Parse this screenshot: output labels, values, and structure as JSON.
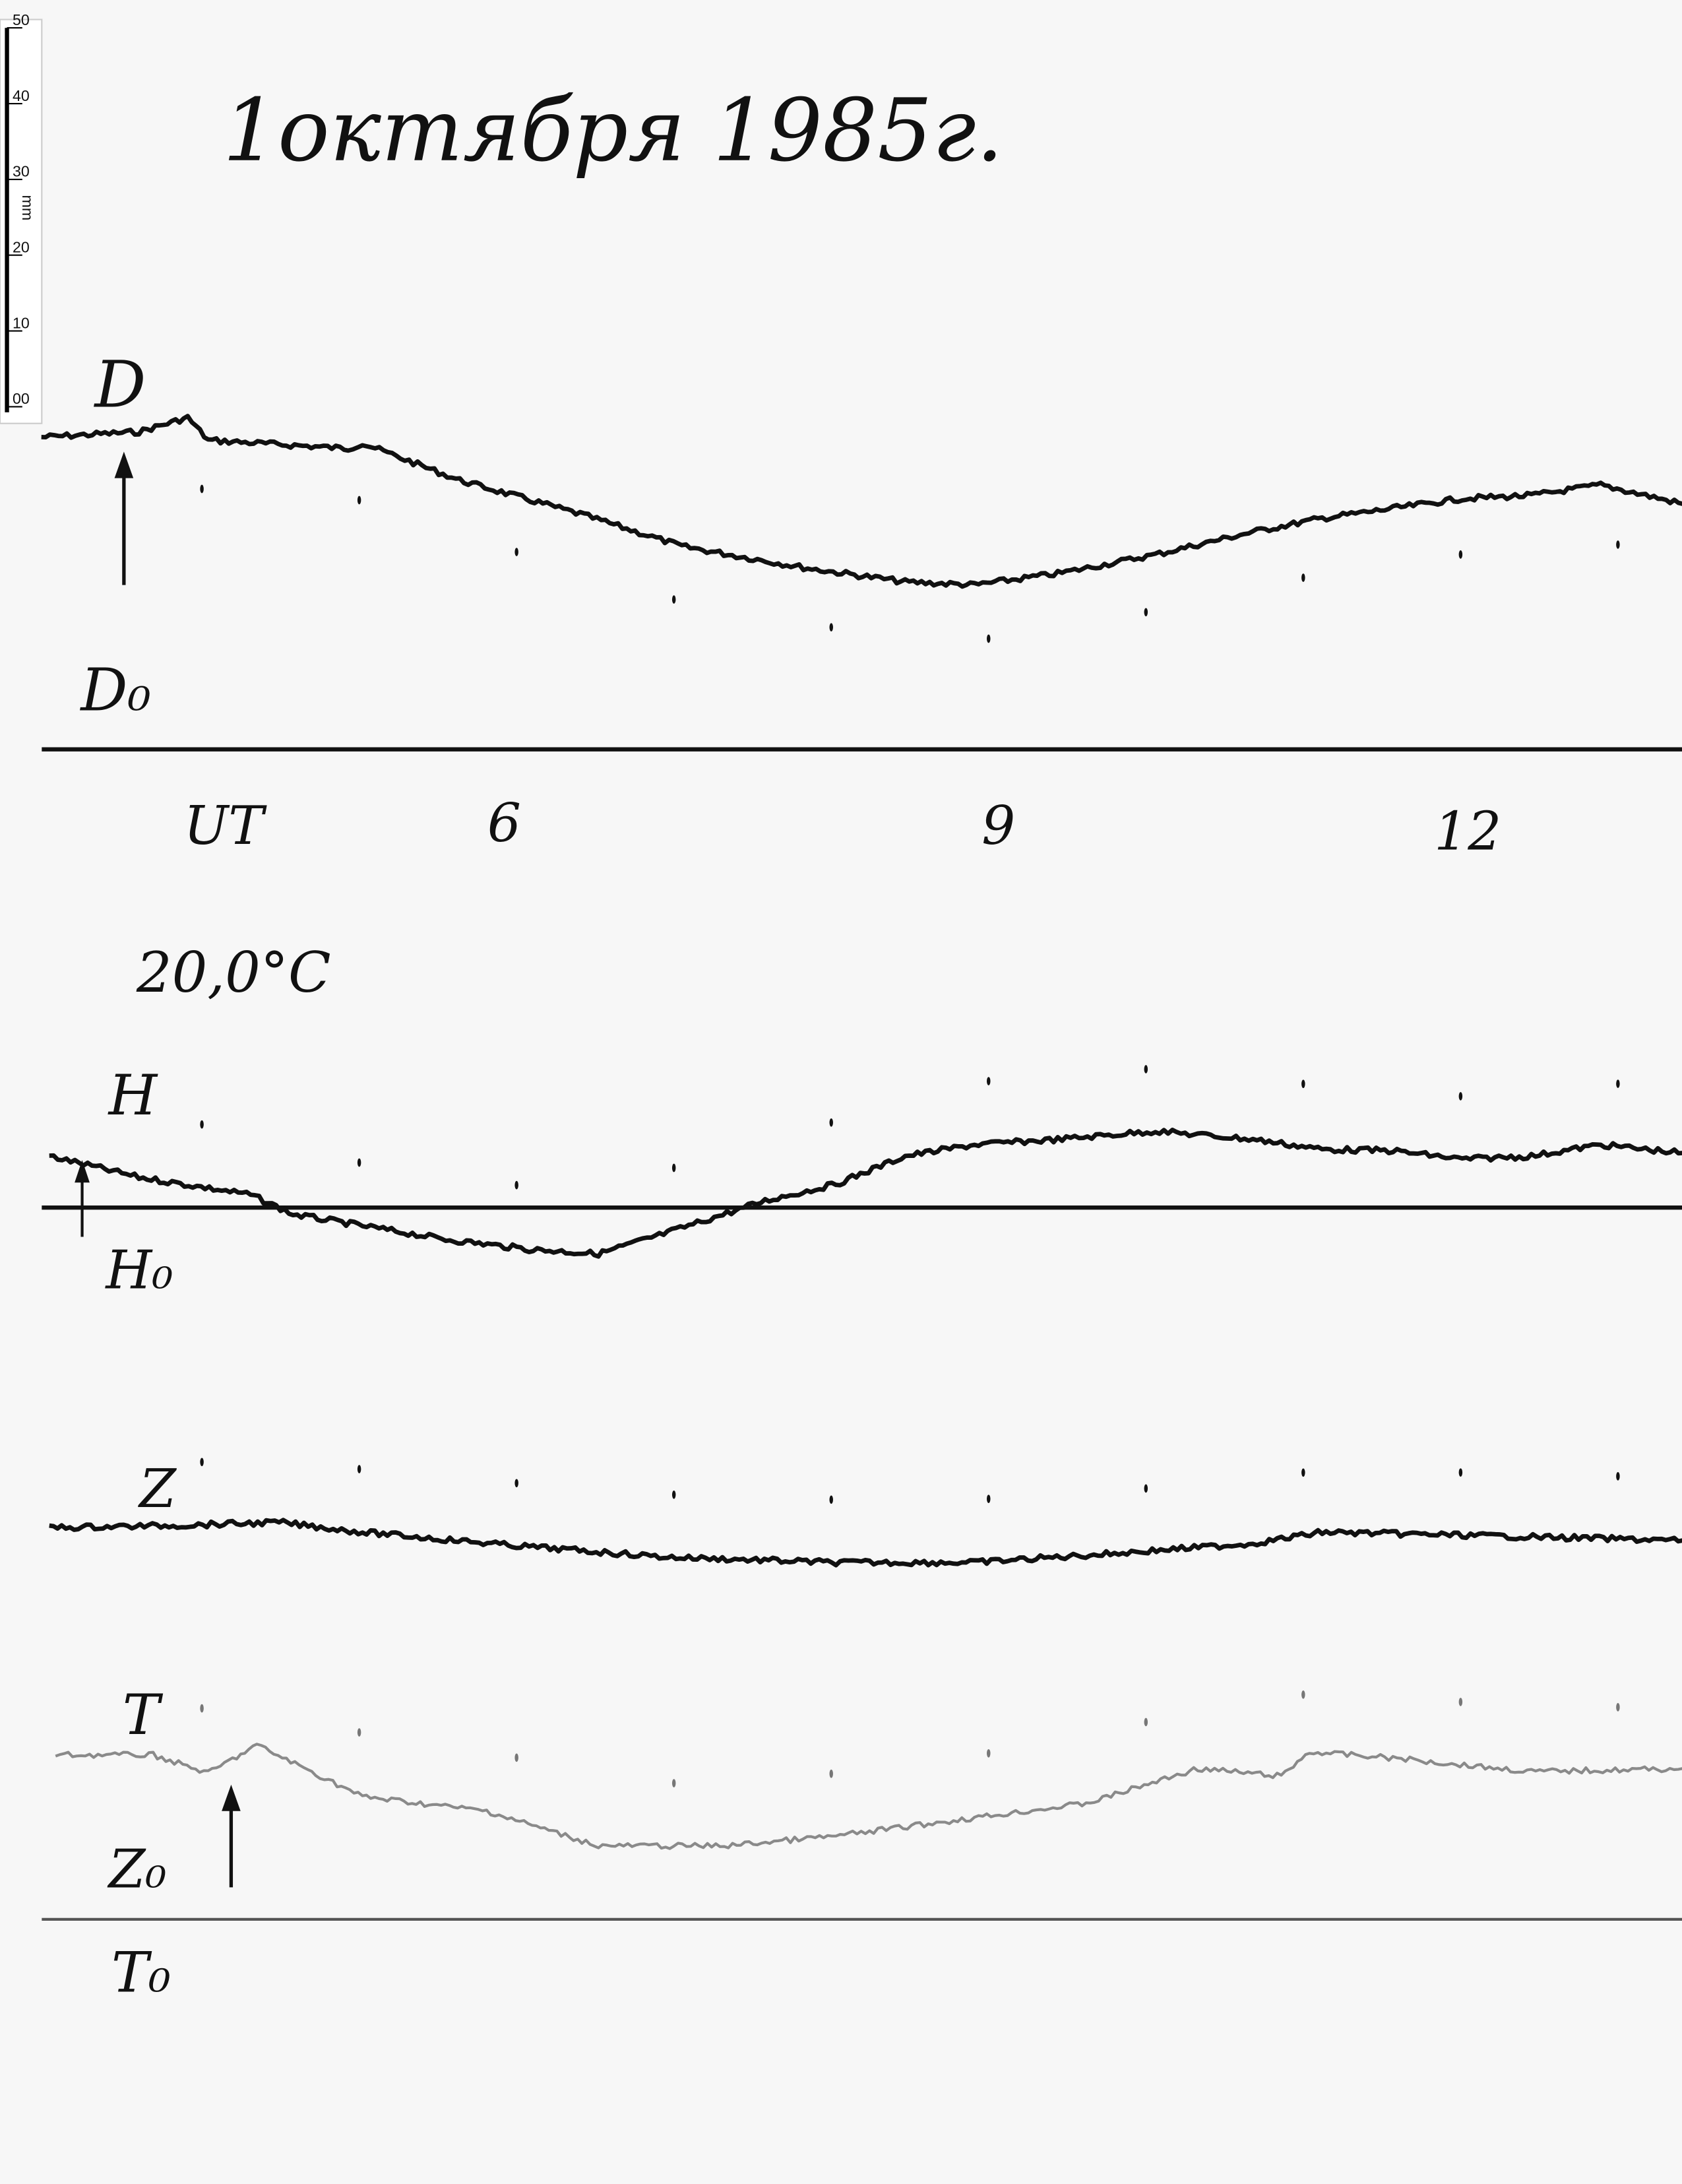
{
  "title": "1октября 1985г.",
  "scale_bar": {
    "unit": "mm",
    "ticks": [
      "00",
      "10",
      "20",
      "30",
      "40",
      "50"
    ]
  },
  "labels": {
    "D": "D",
    "D0": "D₀",
    "UT": "UT",
    "h6": "6",
    "h9": "9",
    "h12": "12",
    "temperature": "20,0°C",
    "H": "H",
    "H0": "H₀",
    "Z": "Z",
    "T": "T",
    "Z0": "Z₀",
    "T0": "T₀"
  },
  "colors": {
    "paper": "#f7f7f7",
    "trace": "#111111",
    "T_trace": "#8a8a8a",
    "baseline": "#111111"
  },
  "chart_data": {
    "type": "line",
    "title": "1октября 1985г.",
    "xlabel": "UT",
    "x_tick_labels": [
      "6",
      "9",
      "12"
    ],
    "x_ticks": [
      6,
      9,
      12
    ],
    "xlim": [
      2.95,
      13.45
    ],
    "y_unit": "mm",
    "hour_marks": [
      4,
      5,
      6,
      7,
      8,
      9,
      10,
      11,
      12,
      13
    ],
    "series": [
      {
        "name": "D",
        "baseline": "D₀",
        "x": [
          2.98,
          3.6,
          3.91,
          4.04,
          4.93,
          5.02,
          5.64,
          6.43,
          7.05,
          7.85,
          8.47,
          8.91,
          9.44,
          10.06,
          10.68,
          11.12,
          11.57,
          12.01,
          12.45,
          12.89,
          13.41
        ],
        "y": [
          41.2,
          41.9,
          43.8,
          40.8,
          39.7,
          40.4,
          35.5,
          30.9,
          26.8,
          23.9,
          22.1,
          21.7,
          23.2,
          25.7,
          28.7,
          30.5,
          31.8,
          33.1,
          33.5,
          34.9,
          32.4
        ]
      },
      {
        "name": "H",
        "baseline": "H₀",
        "x": [
          3.03,
          3.6,
          4.31,
          4.58,
          5.02,
          5.55,
          6.08,
          6.52,
          6.96,
          7.58,
          8.03,
          8.47,
          8.91,
          9.44,
          10.06,
          10.68,
          11.12,
          11.57,
          12.01,
          12.45,
          12.89,
          13.41
        ],
        "y": [
          6.8,
          4.0,
          1.7,
          -0.9,
          -2.4,
          -4.2,
          -5.5,
          -6.1,
          -3.3,
          0.9,
          3.1,
          6.8,
          8.3,
          9.0,
          10.1,
          9.0,
          7.7,
          7.5,
          6.4,
          6.8,
          8.3,
          7.2
        ]
      },
      {
        "name": "Z",
        "baseline": "T₀",
        "x": [
          3.03,
          3.87,
          4.49,
          5.02,
          6.0,
          6.96,
          8.03,
          8.91,
          9.8,
          10.68,
          11.12,
          12.01,
          13.41
        ],
        "y": [
          51.7,
          52.0,
          52.4,
          51.1,
          49.3,
          47.8,
          47.1,
          47.1,
          48.3,
          49.6,
          51.1,
          50.7,
          50.0
        ]
      },
      {
        "name": "T",
        "baseline": "T₀",
        "x": [
          3.07,
          3.69,
          4.04,
          4.35,
          5.02,
          5.81,
          6.52,
          7.32,
          8.03,
          8.91,
          9.62,
          10.33,
          10.86,
          11.04,
          11.57,
          12.45,
          13.41
        ],
        "y": [
          21.7,
          21.7,
          19.3,
          23.0,
          16.2,
          14.3,
          9.7,
          9.7,
          11.0,
          13.4,
          15.3,
          19.9,
          18.9,
          22.1,
          21.3,
          19.5,
          19.9
        ]
      }
    ]
  }
}
